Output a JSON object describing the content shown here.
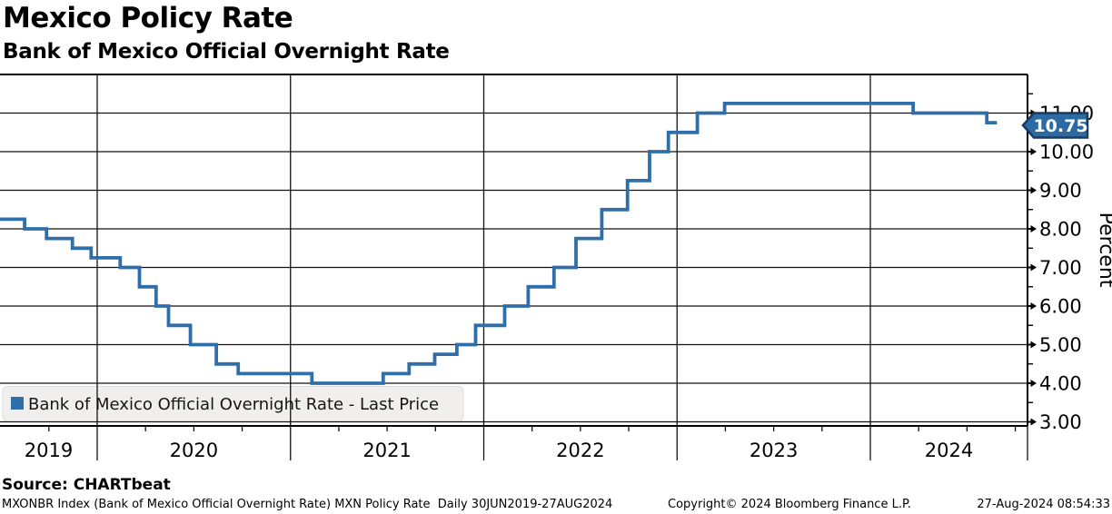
{
  "header": {
    "title": "Mexico Policy Rate",
    "subtitle": "Bank of Mexico Official Overnight Rate"
  },
  "chart_data": {
    "type": "line",
    "step_style": "step-after",
    "title": "Mexico Policy Rate",
    "subtitle": "Bank of Mexico Official Overnight Rate",
    "xlabel": "",
    "ylabel": "Percent",
    "ylim": [
      2.9,
      12.0
    ],
    "x_range_label": "30JUN2019-27AUG2024",
    "x_tick_labels": [
      "2019",
      "2020",
      "2021",
      "2022",
      "2023",
      "2024"
    ],
    "y_tick_values": [
      3,
      4,
      5,
      6,
      7,
      8,
      9,
      10,
      11
    ],
    "y_tick_labels": [
      "3.00",
      "4.00",
      "5.00",
      "6.00",
      "7.00",
      "8.00",
      "9.00",
      "10.00",
      "11.00"
    ],
    "grid": true,
    "legend_position": "bottom-left",
    "legend": {
      "label": "Bank of Mexico Official Overnight Rate - Last Price",
      "marker_color": "#2f6ea8"
    },
    "series": [
      {
        "name": "Bank of Mexico Official Overnight Rate - Last Price",
        "color": "#2f6ea8",
        "points": [
          [
            "2019-06-30",
            8.25
          ],
          [
            "2019-08-16",
            8.0
          ],
          [
            "2019-09-27",
            7.75
          ],
          [
            "2019-11-15",
            7.5
          ],
          [
            "2019-12-20",
            7.25
          ],
          [
            "2020-02-14",
            7.0
          ],
          [
            "2020-03-20",
            6.5
          ],
          [
            "2020-04-21",
            6.0
          ],
          [
            "2020-05-14",
            5.5
          ],
          [
            "2020-06-25",
            5.0
          ],
          [
            "2020-08-13",
            4.5
          ],
          [
            "2020-09-24",
            4.25
          ],
          [
            "2021-02-11",
            4.0
          ],
          [
            "2021-06-24",
            4.25
          ],
          [
            "2021-08-12",
            4.5
          ],
          [
            "2021-09-30",
            4.75
          ],
          [
            "2021-11-11",
            5.0
          ],
          [
            "2021-12-16",
            5.5
          ],
          [
            "2022-02-10",
            6.0
          ],
          [
            "2022-03-24",
            6.5
          ],
          [
            "2022-05-12",
            7.0
          ],
          [
            "2022-06-23",
            7.75
          ],
          [
            "2022-08-11",
            8.5
          ],
          [
            "2022-09-29",
            9.25
          ],
          [
            "2022-11-10",
            10.0
          ],
          [
            "2022-12-15",
            10.5
          ],
          [
            "2023-02-09",
            11.0
          ],
          [
            "2023-03-30",
            11.25
          ],
          [
            "2024-03-21",
            11.0
          ],
          [
            "2024-08-08",
            10.75
          ],
          [
            "2024-08-27",
            10.75
          ]
        ]
      }
    ],
    "last_price_flag": {
      "label": "10.75",
      "value": 10.75,
      "fill": "#2b6aa3",
      "border": "#1a3a5e",
      "text_color": "#ffffff"
    },
    "colors": {
      "grid": "#111111",
      "frame": "#000000",
      "background": "#ffffff"
    }
  },
  "source": {
    "label": "Source: CHARTbeat"
  },
  "footer": {
    "left": "MXONBR Index (Bank of Mexico Official Overnight Rate) MXN Policy Rate  Daily 30JUN2019-27AUG2024",
    "center": "Copyright© 2024 Bloomberg Finance L.P.",
    "right": "27-Aug-2024 08:54:33"
  }
}
